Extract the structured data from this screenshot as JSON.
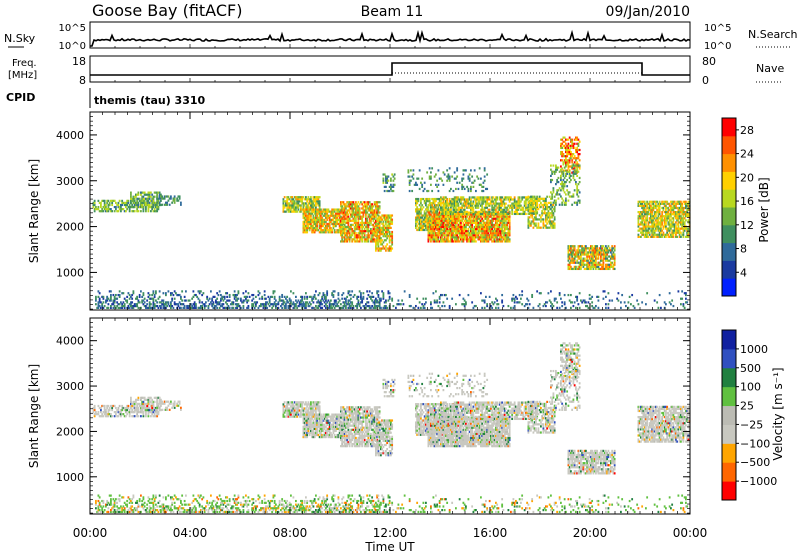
{
  "header": {
    "station": "Goose Bay (fitACF)",
    "beam": "Beam 11",
    "date": "09/Jan/2010"
  },
  "noise_panel": {
    "left_label": "N.Sky",
    "left_ticks": [
      "10^5",
      "10^0"
    ],
    "right_label": "N.Search",
    "right_ticks": [
      "10^5",
      "10^0"
    ]
  },
  "freq_panel": {
    "left_label_1": "Freq.",
    "left_label_2": "[MHz]",
    "left_ticks": [
      "18",
      "8"
    ],
    "right_label": "Nave",
    "right_ticks": [
      "80",
      "0"
    ],
    "cpid_label": "CPID",
    "cpid_text": "themis (tau) 3310"
  },
  "colors": {
    "power_scale": [
      "#0020ff",
      "#1a3aa0",
      "#2f6a9a",
      "#3f8f5f",
      "#6fb040",
      "#b8d820",
      "#ffd000",
      "#ff9000",
      "#ff5500",
      "#ff0000"
    ],
    "velocity_scale": [
      "#ff0000",
      "#ff6600",
      "#ffa500",
      "#c8c8c0",
      "#bcbcb4",
      "#60c040",
      "#208040",
      "#3050c0",
      "#1020a0"
    ]
  },
  "chart_data": [
    {
      "type": "heatmap",
      "title": "",
      "xlabel": "Time UT",
      "ylabel": "Slant Range [km]",
      "x_ticks": [
        "00:00",
        "04:00",
        "08:00",
        "12:00",
        "16:00",
        "20:00",
        "00:00"
      ],
      "y_ticks": [
        1000,
        2000,
        3000,
        4000
      ],
      "xlim_hours": [
        0,
        24
      ],
      "ylim_km": [
        180,
        4500
      ],
      "colorbar_label": "Power [dB]",
      "colorbar_ticks": [
        4,
        8,
        12,
        16,
        20,
        24,
        28
      ],
      "colorbar_range": [
        0,
        30
      ]
    },
    {
      "type": "heatmap",
      "title": "",
      "xlabel": "Time UT",
      "ylabel": "Slant Range [km]",
      "x_ticks": [
        "00:00",
        "04:00",
        "08:00",
        "12:00",
        "16:00",
        "20:00",
        "00:00"
      ],
      "y_ticks": [
        1000,
        2000,
        3000,
        4000
      ],
      "xlim_hours": [
        0,
        24
      ],
      "ylim_km": [
        180,
        4500
      ],
      "colorbar_label": "Velocity [m s⁻¹]",
      "colorbar_ticks": [
        "1000",
        "500",
        "100",
        "25",
        "−25",
        "−100",
        "−500",
        "−1000"
      ]
    }
  ]
}
